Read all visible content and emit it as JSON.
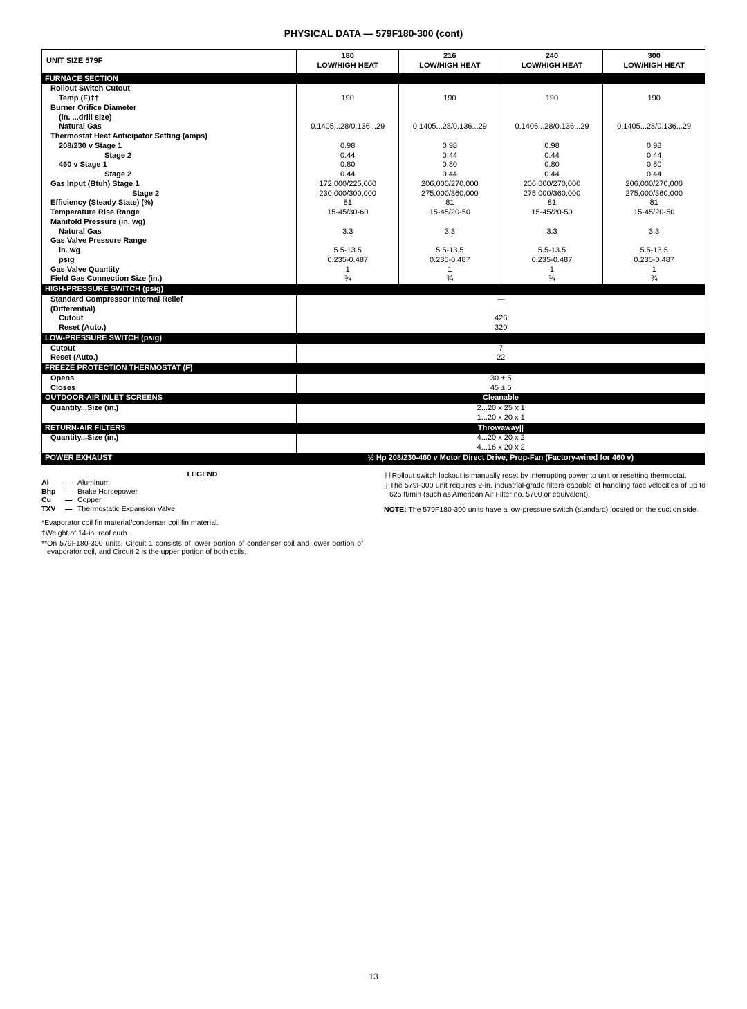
{
  "title": "PHYSICAL DATA — 579F180-300 (cont)",
  "header": {
    "unit": "UNIT SIZE 579F",
    "cols": [
      "180",
      "216",
      "240",
      "300"
    ],
    "sub": "LOW/HIGH HEAT"
  },
  "furnace": {
    "section": "FURNACE SECTION",
    "rows": [
      {
        "label": "Rollout Switch Cutout",
        "indent": 1,
        "bold": true,
        "vals": [
          "",
          "",
          "",
          ""
        ]
      },
      {
        "label": "Temp (F)††",
        "indent": 2,
        "bold": true,
        "vals": [
          "190",
          "190",
          "190",
          "190"
        ]
      },
      {
        "label": "Burner Orifice Diameter",
        "indent": 1,
        "bold": true,
        "vals": [
          "",
          "",
          "",
          ""
        ]
      },
      {
        "label": "(in. ...drill size)",
        "indent": 2,
        "bold": true,
        "vals": [
          "",
          "",
          "",
          ""
        ]
      },
      {
        "label": "Natural Gas",
        "indent": 2,
        "bold": true,
        "vals": [
          "0.1405...28/0.136...29",
          "0.1405...28/0.136...29",
          "0.1405...28/0.136...29",
          "0.1405...28/0.136...29"
        ]
      },
      {
        "label": "Thermostat Heat Anticipator Setting (amps)",
        "indent": 1,
        "bold": true,
        "vals": [
          "",
          "",
          "",
          ""
        ]
      },
      {
        "label": "208/230 v  Stage 1",
        "indent": 2,
        "bold": true,
        "vals": [
          "0.98",
          "0.98",
          "0.98",
          "0.98"
        ]
      },
      {
        "label": "Stage 2",
        "indent": 2,
        "bold": true,
        "pad": true,
        "vals": [
          "0.44",
          "0.44",
          "0.44",
          "0.44"
        ]
      },
      {
        "label": "460 v  Stage 1",
        "indent": 2,
        "bold": true,
        "vals": [
          "0.80",
          "0.80",
          "0.80",
          "0.80"
        ]
      },
      {
        "label": "Stage 2",
        "indent": 2,
        "bold": true,
        "pad": true,
        "vals": [
          "0.44",
          "0.44",
          "0.44",
          "0.44"
        ]
      },
      {
        "label": "Gas Input (Btuh)  Stage 1",
        "indent": 1,
        "bold": true,
        "vals": [
          "172,000/225,000",
          "206,000/270,000",
          "206,000/270,000",
          "206,000/270,000"
        ]
      },
      {
        "label": "Stage 2",
        "indent": 2,
        "bold": true,
        "pad2": true,
        "vals": [
          "230,000/300,000",
          "275,000/360,000",
          "275,000/360,000",
          "275,000/360,000"
        ]
      },
      {
        "label": "Efficiency (Steady State) (%)",
        "indent": 1,
        "bold": true,
        "vals": [
          "81",
          "81",
          "81",
          "81"
        ]
      },
      {
        "label": "Temperature Rise Range",
        "indent": 1,
        "bold": true,
        "vals": [
          "15-45/30-60",
          "15-45/20-50",
          "15-45/20-50",
          "15-45/20-50"
        ]
      },
      {
        "label": "Manifold Pressure (in. wg)",
        "indent": 1,
        "bold": true,
        "vals": [
          "",
          "",
          "",
          ""
        ]
      },
      {
        "label": "Natural Gas",
        "indent": 2,
        "bold": true,
        "vals": [
          "3.3",
          "3.3",
          "3.3",
          "3.3"
        ]
      },
      {
        "label": "Gas Valve Pressure Range",
        "indent": 1,
        "bold": true,
        "vals": [
          "",
          "",
          "",
          ""
        ]
      },
      {
        "label": "in. wg",
        "indent": 2,
        "bold": true,
        "vals": [
          "5.5-13.5",
          "5.5-13.5",
          "5.5-13.5",
          "5.5-13.5"
        ]
      },
      {
        "label": "psig",
        "indent": 2,
        "bold": true,
        "vals": [
          "0.235-0.487",
          "0.235-0.487",
          "0.235-0.487",
          "0.235-0.487"
        ]
      },
      {
        "label": "Gas Valve Quantity",
        "indent": 1,
        "bold": true,
        "vals": [
          "1",
          "1",
          "1",
          "1"
        ]
      },
      {
        "label": "Field Gas Connection Size (in.)",
        "indent": 1,
        "bold": true,
        "vals": [
          "¾",
          "¾",
          "¾",
          "¾"
        ]
      }
    ]
  },
  "hps": {
    "section": "HIGH-PRESSURE SWITCH (psig)",
    "rows": [
      {
        "label": "Standard Compressor Internal Relief",
        "indent": 1,
        "bold": true,
        "span": "—"
      },
      {
        "label": "(Differential)",
        "indent": 1,
        "bold": true,
        "span": ""
      },
      {
        "label": "Cutout",
        "indent": 2,
        "bold": true,
        "span": "426"
      },
      {
        "label": "Reset (Auto.)",
        "indent": 2,
        "bold": true,
        "span": "320"
      }
    ]
  },
  "lps": {
    "section": "LOW-PRESSURE SWITCH (psig)",
    "rows": [
      {
        "label": "Cutout",
        "indent": 1,
        "bold": true,
        "span": "7"
      },
      {
        "label": "Reset (Auto.)",
        "indent": 1,
        "bold": true,
        "span": "22"
      }
    ]
  },
  "freeze": {
    "section": "FREEZE PROTECTION  THERMOSTAT (F)",
    "rows": [
      {
        "label": "Opens",
        "indent": 1,
        "bold": true,
        "span": "30 ± 5"
      },
      {
        "label": "Closes",
        "indent": 1,
        "bold": true,
        "span": "45 ± 5"
      }
    ]
  },
  "outdoor": {
    "section": "OUTDOOR-AIR INLET SCREENS",
    "section_span": "Cleanable",
    "rows": [
      {
        "label": "Quantity...Size (in.)",
        "indent": 1,
        "bold": true,
        "span": "2...20 x 25 x 1"
      },
      {
        "label": "",
        "indent": 1,
        "bold": true,
        "span": "1...20 x 20 x 1"
      }
    ]
  },
  "return": {
    "section": "RETURN-AIR FILTERS",
    "section_span": "Throwaway||",
    "rows": [
      {
        "label": "Quantity...Size (in.)",
        "indent": 1,
        "bold": true,
        "span": "4...20 x 20 x 2"
      },
      {
        "label": "",
        "indent": 1,
        "bold": true,
        "span": "4...16 x 20 x 2"
      }
    ]
  },
  "power": {
    "section": "POWER EXHAUST",
    "section_span": "½ Hp 208/230-460 v Motor Direct Drive, Prop-Fan (Factory-wired for 460 v)"
  },
  "legend": {
    "title": "LEGEND",
    "items": [
      {
        "abbr": "Al",
        "def": "Aluminum"
      },
      {
        "abbr": "Bhp",
        "def": "Brake Horsepower"
      },
      {
        "abbr": "Cu",
        "def": "Copper"
      },
      {
        "abbr": "TXV",
        "def": "Thermostatic Expansion Valve"
      }
    ],
    "footnotes_left": [
      "*Evaporator coil fin material/condenser coil fin material.",
      "†Weight of 14-in. roof curb.",
      "**On 579F180-300 units, Circuit 1 consists of lower portion of condenser coil and lower portion of evaporator coil, and Circuit 2 is the upper portion of both coils."
    ],
    "footnotes_right": [
      "††Rollout switch lockout is manually reset by interrupting power to unit or resetting thermostat.",
      "|| The 579F300 unit requires 2-in. industrial-grade filters capable of handling face velocities of up to 625 ft/min (such as American Air Filter no. 5700 or equivalent)."
    ],
    "note": "NOTE: The 579F180-300 units have a low-pressure switch (standard) located on the suction side."
  },
  "page": "13"
}
